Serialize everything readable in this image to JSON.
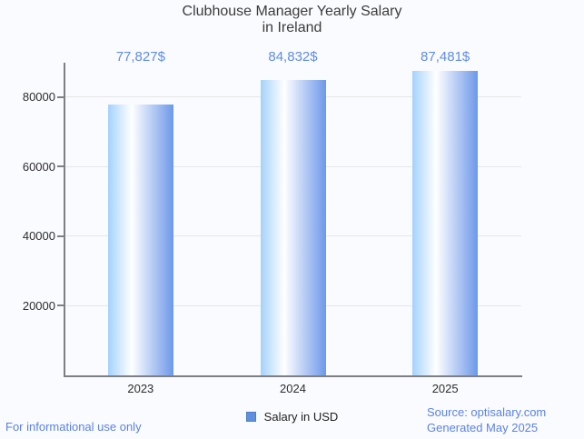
{
  "chart": {
    "title_line1": "Clubhouse Manager Yearly Salary",
    "title_line2": "in Ireland"
  },
  "chart_data": {
    "type": "bar",
    "title": "Clubhouse Manager Yearly Salary in Ireland",
    "categories": [
      "2023",
      "2024",
      "2025"
    ],
    "values": [
      77827,
      84832,
      87481
    ],
    "value_labels": [
      "77,827$",
      "84,832$",
      "87,481$"
    ],
    "series_name": "Salary in USD",
    "xlabel": "",
    "ylabel": "",
    "yticks": [
      20000,
      40000,
      60000,
      80000
    ],
    "ytick_labels": [
      "20000",
      "40000",
      "60000",
      "80000"
    ],
    "ylim": [
      0,
      89800
    ],
    "grid": true,
    "legend_position": "bottom"
  },
  "legend": {
    "label": "Salary in USD",
    "swatch_color": "#6090dd",
    "swatch_border_color": "#4c7dc9"
  },
  "footer": {
    "disclaimer": "For informational use only",
    "source": "Source: optisalary.com",
    "generated": "Generated May 2025"
  },
  "colors": {
    "background": "#fafbfe",
    "title_text": "#3c3c3c",
    "axis_line": "#7d7f83",
    "gridline": "#e5e6e8",
    "axis_label_text": "#2d2d2d",
    "value_label_text": "#5f8ce8",
    "footer_text": "#5a82e6",
    "bar_gradient_left": "#a5d2fc",
    "bar_gradient_mid": "#ffffff",
    "bar_gradient_right": "#6d98e9"
  }
}
